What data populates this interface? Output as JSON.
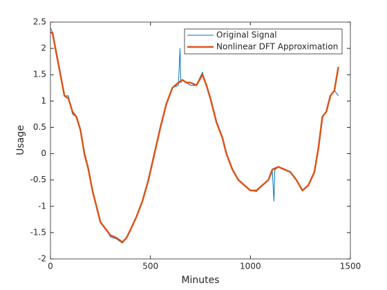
{
  "chart_data": {
    "type": "line",
    "xlabel": "Minutes",
    "ylabel": "Usage",
    "xlim": [
      0,
      1500
    ],
    "xticks": [
      0,
      500,
      1000,
      1500
    ],
    "ylim": [
      -2,
      2.5
    ],
    "yticks": [
      -2,
      -1.5,
      -1,
      -0.5,
      0,
      0.5,
      1,
      1.5,
      2,
      2.5
    ],
    "grid": false,
    "legend": "upper right",
    "series": [
      {
        "name": "Original Signal",
        "color": "#0072bd",
        "linewidth": 1,
        "x": [
          0,
          10,
          30,
          50,
          70,
          90,
          110,
          130,
          150,
          170,
          190,
          210,
          230,
          250,
          280,
          300,
          330,
          360,
          380,
          400,
          430,
          460,
          490,
          520,
          550,
          580,
          610,
          640,
          648,
          652,
          660,
          680,
          700,
          730,
          760,
          780,
          800,
          830,
          860,
          880,
          910,
          940,
          970,
          1000,
          1030,
          1060,
          1090,
          1110,
          1118,
          1122,
          1126,
          1140,
          1170,
          1200,
          1230,
          1260,
          1290,
          1320,
          1340,
          1360,
          1380,
          1400,
          1420,
          1440
        ],
        "values": [
          2.4,
          2.3,
          1.85,
          1.5,
          1.1,
          1.1,
          0.75,
          0.7,
          0.45,
          -0.05,
          -0.3,
          -0.7,
          -1.0,
          -1.3,
          -1.45,
          -1.58,
          -1.62,
          -1.7,
          -1.6,
          -1.45,
          -1.2,
          -0.9,
          -0.5,
          0.0,
          0.5,
          0.95,
          1.25,
          1.3,
          2.0,
          1.35,
          1.4,
          1.35,
          1.3,
          1.3,
          1.55,
          1.3,
          1.05,
          0.6,
          0.3,
          0.0,
          -0.3,
          -0.5,
          -0.6,
          -0.7,
          -0.72,
          -0.6,
          -0.5,
          -0.35,
          -0.9,
          -0.3,
          -0.3,
          -0.25,
          -0.3,
          -0.35,
          -0.5,
          -0.7,
          -0.6,
          -0.35,
          0.1,
          0.7,
          0.8,
          1.1,
          1.2,
          1.1
        ]
      },
      {
        "name": "Nonlinear DFT Approximation",
        "color": "#d95319",
        "linewidth": 2.5,
        "x": [
          0,
          10,
          30,
          50,
          70,
          90,
          110,
          130,
          150,
          170,
          190,
          210,
          230,
          250,
          280,
          300,
          330,
          360,
          380,
          400,
          430,
          460,
          490,
          520,
          550,
          580,
          610,
          640,
          660,
          680,
          700,
          730,
          760,
          780,
          800,
          830,
          860,
          880,
          910,
          940,
          970,
          1000,
          1030,
          1060,
          1090,
          1110,
          1140,
          1170,
          1200,
          1230,
          1260,
          1290,
          1320,
          1340,
          1360,
          1380,
          1400,
          1420,
          1440
        ],
        "values": [
          2.3,
          2.3,
          1.9,
          1.5,
          1.1,
          1.05,
          0.8,
          0.7,
          0.45,
          0.0,
          -0.3,
          -0.7,
          -1.0,
          -1.3,
          -1.45,
          -1.55,
          -1.6,
          -1.68,
          -1.6,
          -1.45,
          -1.2,
          -0.9,
          -0.5,
          0.0,
          0.5,
          0.95,
          1.25,
          1.35,
          1.4,
          1.35,
          1.35,
          1.3,
          1.5,
          1.3,
          1.05,
          0.6,
          0.3,
          0.0,
          -0.3,
          -0.5,
          -0.6,
          -0.7,
          -0.7,
          -0.6,
          -0.5,
          -0.3,
          -0.25,
          -0.3,
          -0.35,
          -0.5,
          -0.7,
          -0.6,
          -0.35,
          0.1,
          0.7,
          0.8,
          1.1,
          1.2,
          1.65
        ]
      }
    ]
  }
}
